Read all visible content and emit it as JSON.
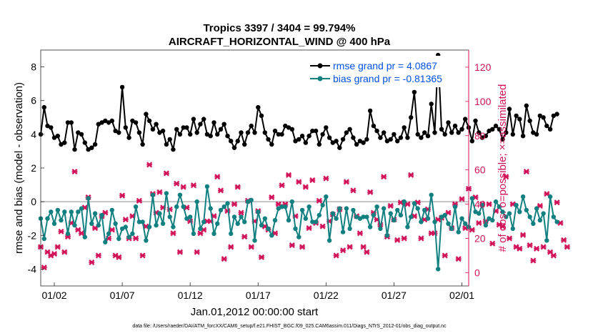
{
  "chart_data": {
    "type": "line",
    "title_line1": "Tropics 3397 / 3404 = 99.794%",
    "title_line2": "AIRCRAFT_HORIZONTAL_WIND @ 400 hPa",
    "ylabel_left": "rmse and bias (model - observation)",
    "ylabel_right": "# of obs: o=possible; ×=assimilated",
    "xlabel": "Jan.01,2012 00:00:00 start",
    "footer": "data file: /Users/raeder/DAI/ATM_forcXX/CAM6_setup/f.e21.FHIST_BGC.f09_025.CAM6assim.011/Diags_NTrS_2012-01/obs_diag_output.nc",
    "xlim": [
      0,
      31.5
    ],
    "ylim_left": [
      -5,
      9
    ],
    "ylim_right": [
      -7.78,
      130
    ],
    "left_ticks": [
      -4,
      -2,
      0,
      2,
      4,
      6,
      8
    ],
    "right_ticks": [
      0,
      20,
      40,
      60,
      80,
      100,
      120
    ],
    "x_ticks": [
      {
        "x": 1,
        "label": "01/02"
      },
      {
        "x": 6,
        "label": "01/07"
      },
      {
        "x": 11,
        "label": "01/12"
      },
      {
        "x": 16,
        "label": "01/17"
      },
      {
        "x": 21,
        "label": "01/22"
      },
      {
        "x": 26,
        "label": "01/27"
      },
      {
        "x": 31,
        "label": "02/01"
      }
    ],
    "legend": {
      "position": "top-right"
    },
    "x_step": 0.25,
    "x_start": 0,
    "series": [
      {
        "name": "rmse grand pr = 4.0867",
        "color": "#000000",
        "axis": "left",
        "values": [
          4.0,
          5.6,
          4.5,
          4.4,
          3.8,
          3.9,
          3.4,
          3.5,
          4.7,
          4.7,
          3.1,
          4.1,
          4.0,
          3.5,
          3.1,
          3.2,
          3.4,
          4.6,
          4.7,
          4.8,
          4.7,
          4.8,
          4.2,
          4.1,
          6.8,
          4.4,
          3.8,
          4.8,
          4.7,
          4.1,
          3.4,
          5.2,
          4.8,
          4.3,
          4.6,
          4.1,
          4.2,
          3.4,
          3.7,
          3.1,
          4.3,
          4.0,
          4.4,
          4.4,
          4.0,
          4.9,
          4.1,
          4.6,
          4.9,
          4.0,
          3.9,
          4.7,
          4.0,
          4.3,
          4.6,
          3.9,
          3.6,
          3.2,
          3.6,
          4.1,
          3.4,
          4.1,
          4.5,
          4.1,
          5.6,
          5.1,
          4.1,
          3.7,
          3.4,
          4.2,
          4.0,
          4.0,
          4.5,
          4.4,
          4.3,
          3.6,
          3.7,
          3.9,
          3.5,
          3.9,
          4.2,
          4.2,
          3.4,
          4.0,
          4.4,
          3.8,
          3.5,
          3.6,
          3.2,
          3.7,
          4.1,
          4.3,
          3.8,
          3.4,
          3.6,
          3.5,
          3.7,
          5.4,
          4.5,
          4.2,
          3.8,
          4.1,
          3.6,
          3.7,
          4.0,
          3.6,
          3.8,
          4.4,
          3.8,
          5.0,
          6.5,
          4.0,
          3.8,
          4.1,
          3.9,
          5.8,
          4.1,
          8.7,
          4.3,
          4.0,
          4.7,
          4.1,
          4.5,
          4.1,
          4.3,
          4.9,
          4.4,
          3.6,
          4.8,
          4.1,
          3.8,
          3.9,
          4.2,
          4.3,
          4.5,
          4.3,
          3.7,
          4.1,
          5.5,
          4.0,
          5.1,
          4.9,
          3.9,
          5.7,
          4.8,
          4.1,
          4.0,
          5.1,
          5.0,
          4.5,
          4.3,
          5.1,
          5.2
        ]
      },
      {
        "name": "bias grand pr = -0.81365",
        "color": "#128080",
        "axis": "left",
        "values": [
          -1.0,
          -2.2,
          -1.0,
          -0.6,
          -1.3,
          -0.5,
          -1.1,
          -0.6,
          -1.9,
          -0.6,
          -1.4,
          -0.6,
          -0.4,
          -2.1,
          0.2,
          -1.3,
          -0.7,
          -1.4,
          -0.8,
          -2.4,
          -1.9,
          -0.5,
          -1.3,
          -2.2,
          -1.6,
          -1.5,
          -2.1,
          -1.9,
          -0.3,
          -1.2,
          -1.2,
          -2.3,
          -1.5,
          0.4,
          -1.4,
          -0.7,
          -1.3,
          0.5,
          -0.9,
          -1.5,
          -0.3,
          0.4,
          -0.3,
          -1.0,
          -0.9,
          -1.9,
          0.0,
          -1.6,
          -1.2,
          0.9,
          -0.4,
          -1.9,
          -1.3,
          -0.5,
          -0.3,
          -0.1,
          -1.9,
          -0.9,
          -1.3,
          -0.9,
          -1.2,
          0.0,
          0.1,
          -2.3,
          -0.6,
          -1.4,
          -1.0,
          -1.6,
          -2.0,
          -1.1,
          -0.4,
          -0.3,
          -0.3,
          -1.1,
          0.0,
          -1.6,
          -2.1,
          -0.5,
          -1.0,
          -0.3,
          -1.2,
          -1.2,
          -0.8,
          -0.2,
          0.3,
          -2.3,
          -0.7,
          -1.0,
          -0.4,
          -1.8,
          -0.4,
          -1.6,
          -0.5,
          -0.9,
          -1.0,
          -0.9,
          -0.9,
          -1.5,
          -0.8,
          -0.3,
          -1.6,
          -0.4,
          -2.0,
          -0.7,
          -1.1,
          -0.5,
          -0.8,
          0.0,
          -1.5,
          -0.9,
          -0.1,
          -0.4,
          -1.2,
          -0.5,
          -1.0,
          0.4,
          -1.2,
          -4.0,
          -0.9,
          -0.8,
          -1.3,
          -1.6,
          -0.3,
          -1.8,
          -1.0,
          -1.3,
          -1.5,
          0.2,
          -0.6,
          -0.7,
          -0.2,
          -1.4,
          -1.0,
          -1.1,
          0.0,
          -0.3,
          -0.6,
          -0.9,
          -0.7,
          -1.6,
          -0.2,
          -0.6,
          0.3,
          -0.5,
          -0.9,
          -1.3,
          -0.4,
          -1.1,
          -0.7,
          -2.3,
          0.3,
          -0.9,
          -1.2
        ]
      },
      {
        "name": "obs possible",
        "color": "#d2135a",
        "axis": "right",
        "marker": "o",
        "values": []
      },
      {
        "name": "obs assimilated",
        "color": "#d2135a",
        "axis": "right",
        "marker": "x",
        "values": [
          15,
          3,
          12,
          10,
          11,
          15,
          24,
          12,
          21,
          29,
          59,
          25,
          23,
          38,
          44,
          6,
          26,
          10,
          33,
          35,
          20,
          25,
          10,
          9,
          45,
          31,
          20,
          33,
          20,
          42,
          10,
          27,
          63,
          46,
          35,
          47,
          38,
          58,
          37,
          23,
          52,
          12,
          50,
          38,
          30,
          51,
          12,
          23,
          25,
          30,
          30,
          33,
          56,
          48,
          8,
          36,
          15,
          40,
          50,
          35,
          21,
          42,
          15,
          30,
          36,
          9,
          27,
          25,
          44,
          23,
          40,
          51,
          40,
          57,
          16,
          33,
          53,
          15,
          50,
          26,
          54,
          29,
          42,
          27,
          55,
          30,
          34,
          10,
          37,
          13,
          53,
          15,
          48,
          33,
          23,
          15,
          12,
          47,
          35,
          31,
          28,
          56,
          21,
          39,
          31,
          19,
          41,
          20,
          40,
          57,
          33,
          41,
          20,
          31,
          37,
          23,
          23,
          31,
          32,
          10,
          35,
          26,
          40,
          8,
          43,
          26,
          49,
          25,
          44,
          29,
          40,
          30,
          40,
          17,
          36,
          28,
          27,
          56,
          20,
          40,
          15,
          14,
          22,
          59,
          16,
          7,
          14,
          39,
          15,
          46,
          12,
          10,
          41,
          29,
          19,
          15
        ]
      }
    ]
  }
}
